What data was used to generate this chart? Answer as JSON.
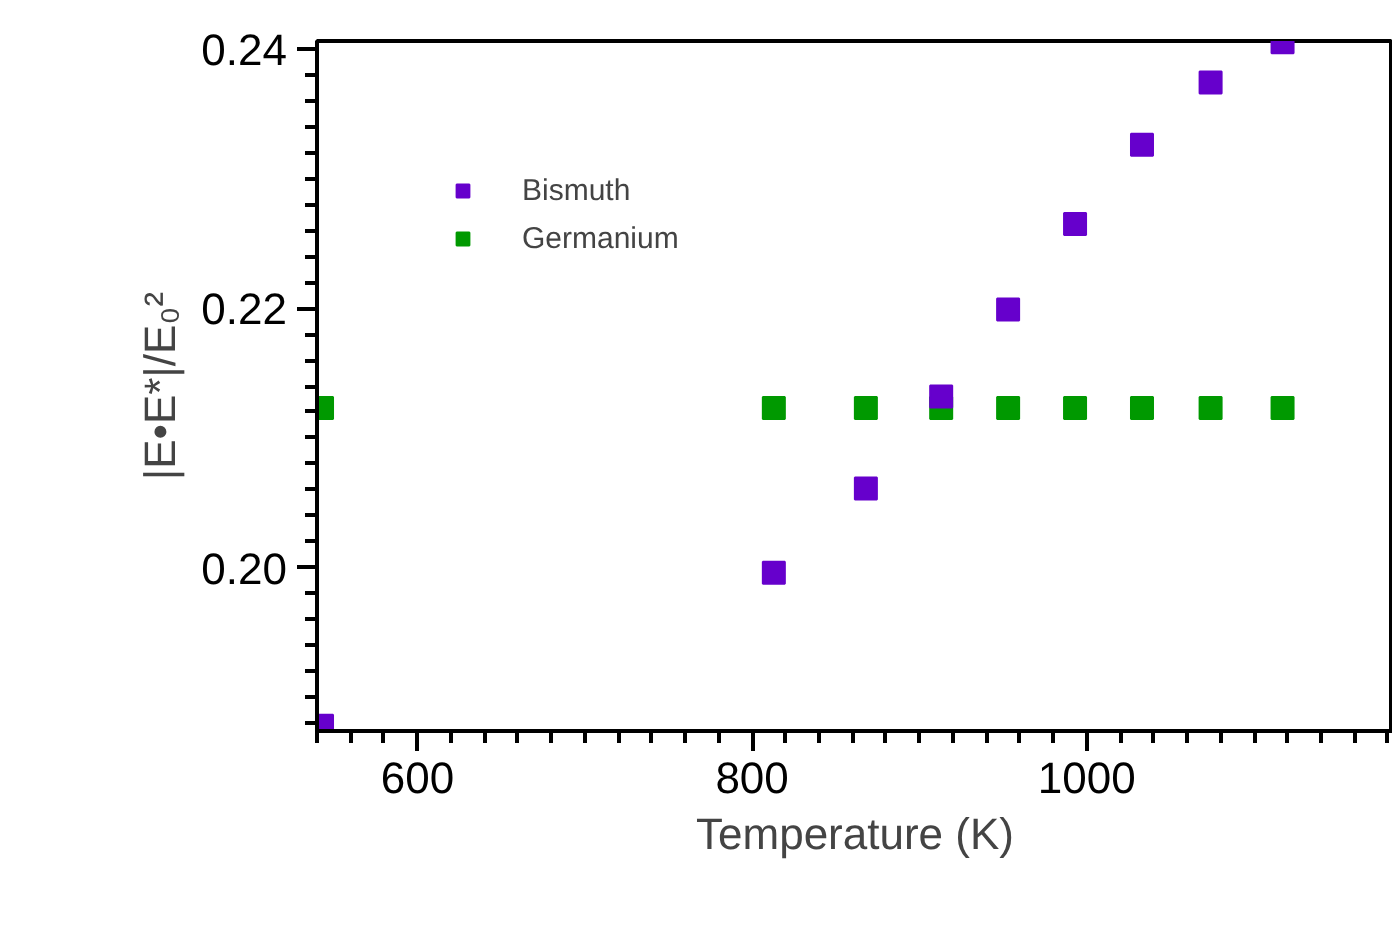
{
  "chart_data": {
    "type": "scatter",
    "xlabel": "Temperature (K)",
    "ylabel": "|E•E*|/E₀²",
    "xlim": [
      540,
      1183
    ],
    "ylim": [
      0.1874,
      0.2406
    ],
    "xticks": [
      600,
      800,
      1000
    ],
    "yticks": [
      {
        "value": 0.2,
        "label": "0.20"
      },
      {
        "value": 0.22,
        "label": "0.22"
      },
      {
        "value": 0.24,
        "label": "0.24"
      }
    ],
    "marker": "square",
    "grid": false,
    "legend": "top left",
    "series": [
      {
        "name": "Bismuth",
        "color": "#6600cc",
        "x": [
          543,
          813,
          868,
          913,
          953,
          993,
          1033,
          1074,
          1117
        ],
        "values": [
          0.1878,
          0.1996,
          0.2061,
          0.2132,
          0.2199,
          0.2265,
          0.2326,
          0.2374,
          0.2405
        ]
      },
      {
        "name": "Germanium",
        "color": "#009900",
        "x": [
          543,
          813,
          868,
          913,
          953,
          993,
          1033,
          1074,
          1117
        ],
        "values": [
          0.2123,
          0.2123,
          0.2123,
          0.2123,
          0.2123,
          0.2123,
          0.2123,
          0.2123,
          0.2123
        ]
      }
    ]
  }
}
